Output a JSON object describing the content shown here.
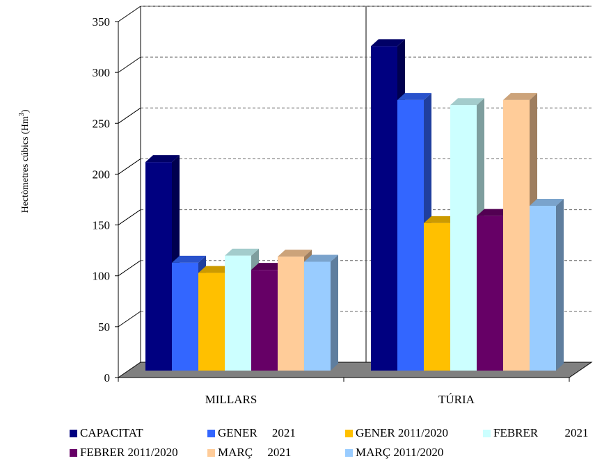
{
  "chart_data": {
    "type": "bar",
    "ylabel": "Hectòmetres cúbics (Hm",
    "ylabel_sup": "3",
    "ylabel_close": ")",
    "ylim": [
      0,
      350
    ],
    "yticks": [
      0,
      50,
      100,
      150,
      200,
      250,
      300,
      350
    ],
    "categories": [
      "MILLARS",
      "TÚRIA"
    ],
    "grid": true,
    "grid_style": "dashed",
    "three_d": true,
    "legend_position": "bottom",
    "series": [
      {
        "name": "CAPACITAT",
        "color": "#000080",
        "values": [
          205,
          319
        ]
      },
      {
        "name": "GENER     2021",
        "color": "#3366ff",
        "values": [
          106,
          266
        ]
      },
      {
        "name": "GENER 2011/2020",
        "color": "#ffc000",
        "values": [
          96,
          145
        ]
      },
      {
        "name": "FEBRER         2021",
        "color": "#ccffff",
        "values": [
          113,
          261
        ]
      },
      {
        "name": "FEBRER 2011/2020",
        "color": "#660066",
        "values": [
          99,
          152
        ]
      },
      {
        "name": "MARÇ     2021",
        "color": "#ffcc99",
        "values": [
          112,
          266
        ]
      },
      {
        "name": "MARÇ 2011/2020",
        "color": "#99ccff",
        "values": [
          107,
          162
        ]
      }
    ]
  }
}
